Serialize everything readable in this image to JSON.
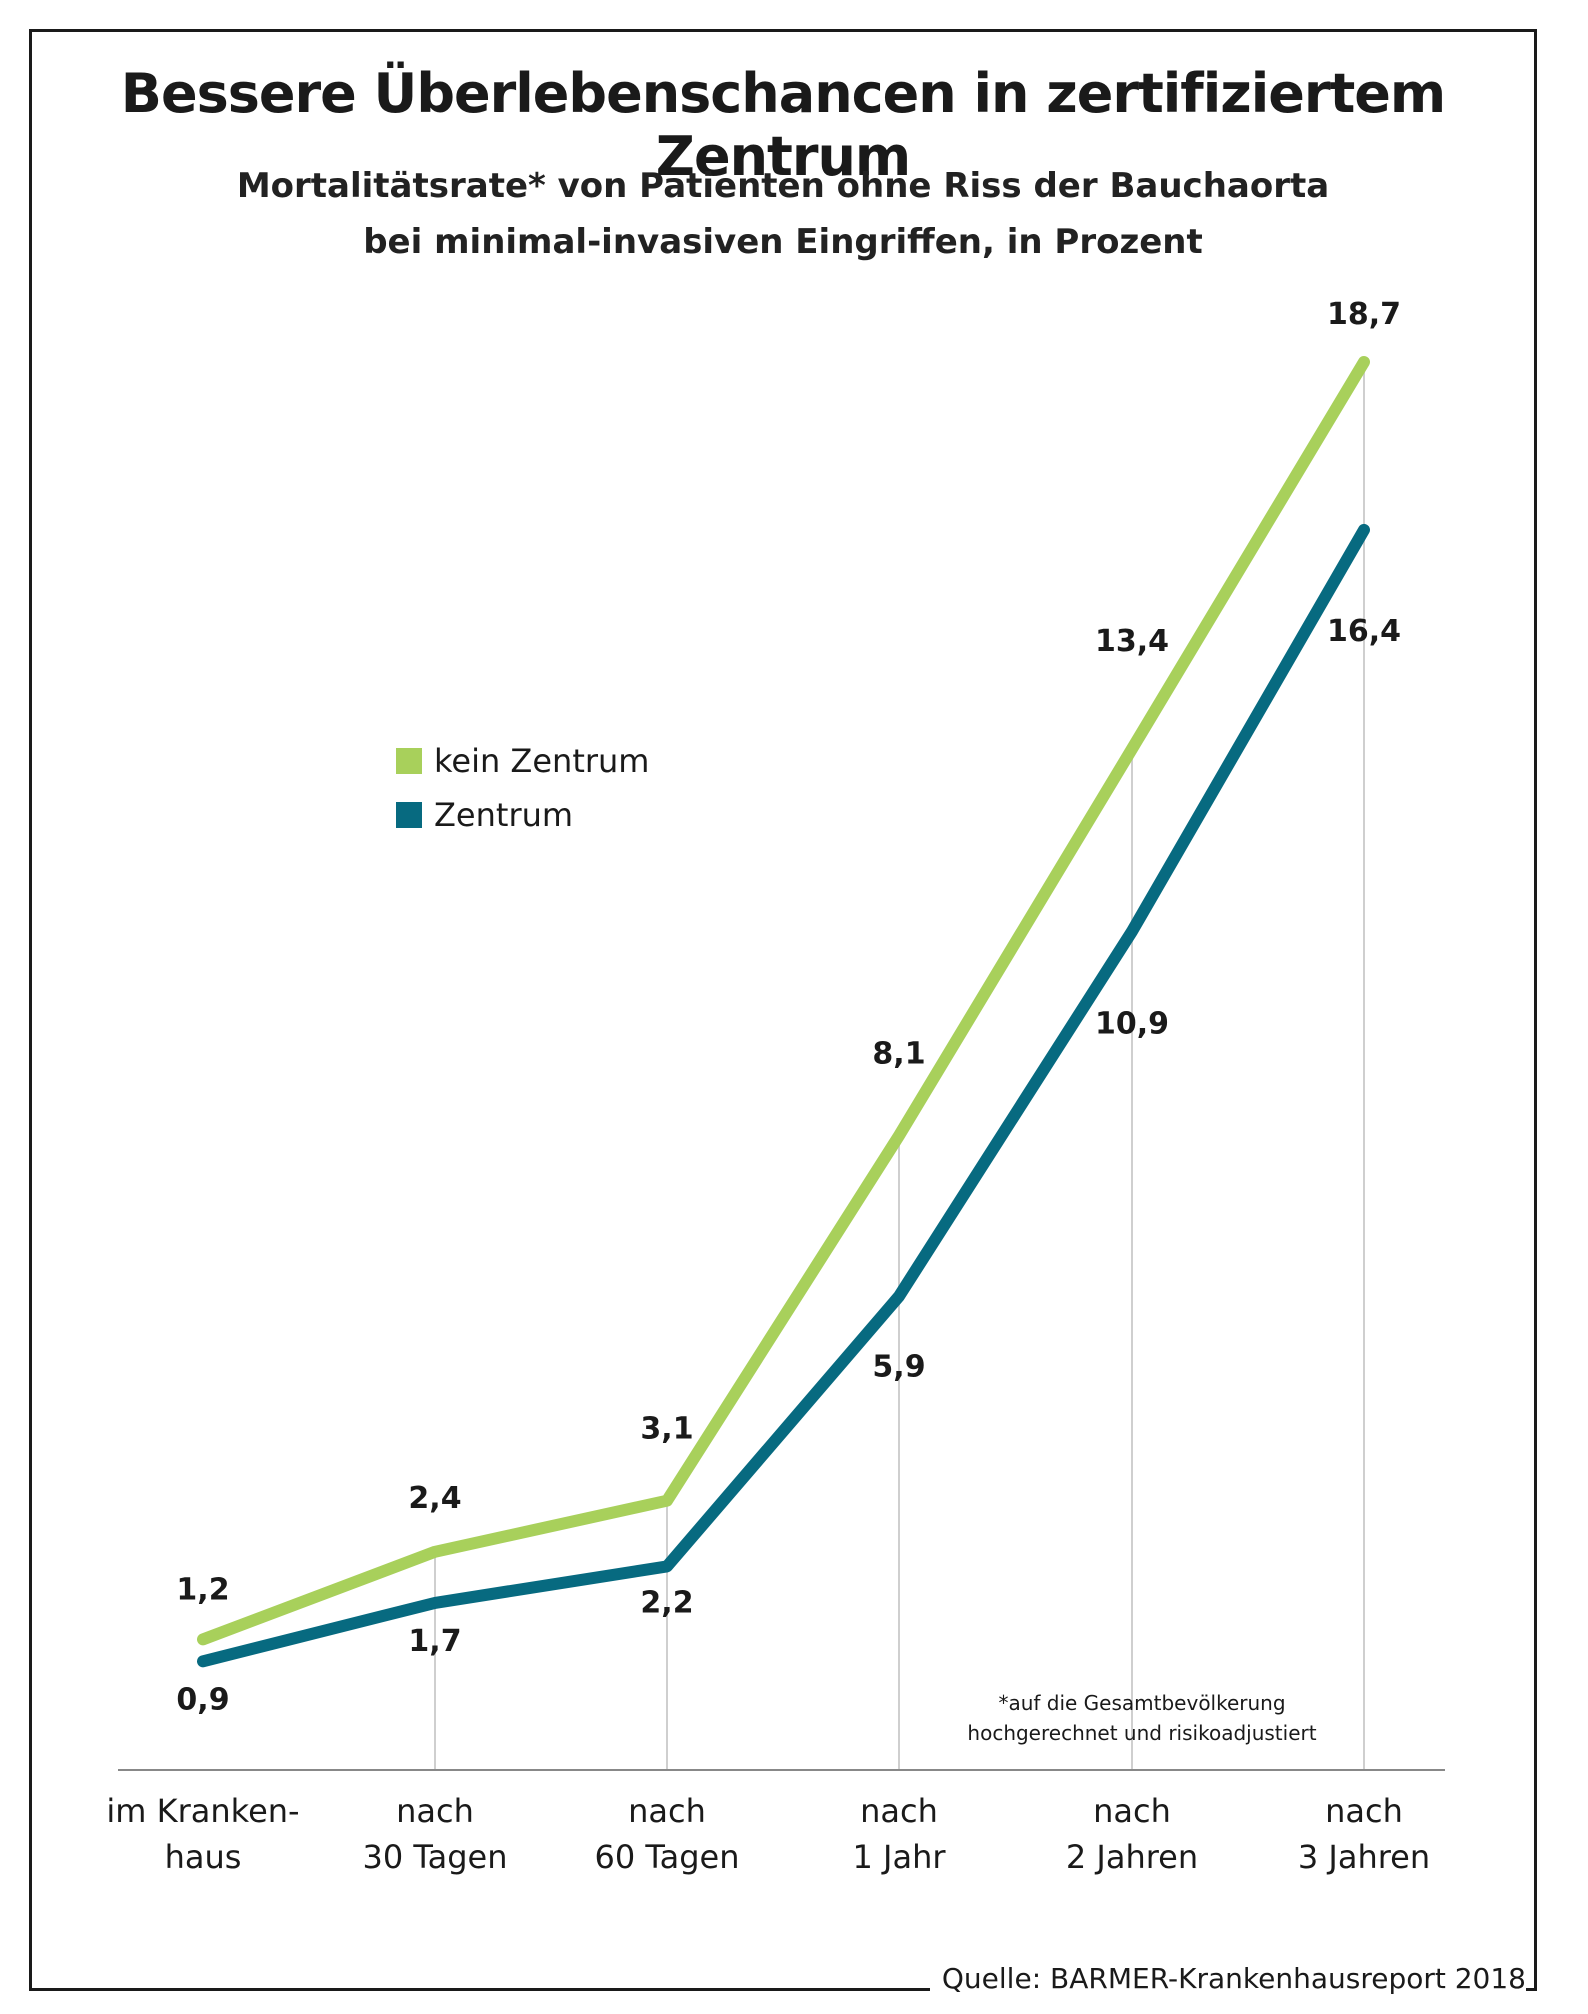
{
  "chart_data": {
    "type": "line",
    "title": "Bessere Überlebenschancen in zertifiziertem Zentrum",
    "subtitle": [
      "Mortalitätsrate* von Patienten ohne Riss der Bauchaorta",
      "bei minimal-invasiven Eingriffen, in Prozent"
    ],
    "categories": [
      [
        "im Kranken-",
        "haus"
      ],
      [
        "nach",
        "30 Tagen"
      ],
      [
        "nach",
        "60 Tagen"
      ],
      [
        "nach",
        "1 Jahr"
      ],
      [
        "nach",
        "2 Jahren"
      ],
      [
        "nach",
        "3 Jahren"
      ]
    ],
    "series": [
      {
        "name": "kein Zentrum",
        "color": "#a8d05b",
        "values": [
          1.2,
          2.4,
          3.1,
          8.1,
          13.4,
          18.7
        ],
        "labels": [
          "1,2",
          "2,4",
          "3,1",
          "8,1",
          "13,4",
          "18,7"
        ]
      },
      {
        "name": "Zentrum",
        "color": "#076a80",
        "values": [
          0.9,
          1.7,
          2.2,
          5.9,
          10.9,
          16.4
        ],
        "labels": [
          "0,9",
          "1,7",
          "2,2",
          "5,9",
          "10,9",
          "16,4"
        ]
      }
    ],
    "ylim": [
      0,
      18.7
    ],
    "grid": false,
    "legend": "center-left",
    "footnote": [
      "*auf die Gesamtbevölkerung",
      "hochgerechnet und risikoadjustiert"
    ],
    "source": "Quelle: BARMER-Krankenhausreport 2018"
  }
}
